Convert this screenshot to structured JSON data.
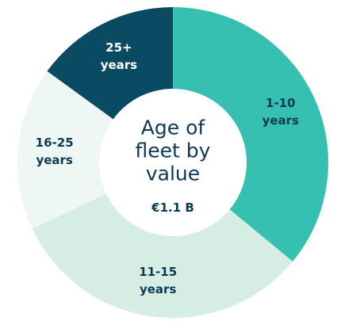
{
  "chart_data": {
    "type": "donut",
    "title": "Age of fleet by value",
    "subtitle": "€1.1 B",
    "categories": [
      "1-10 years",
      "11-15 years",
      "16-25 years",
      "25+ years"
    ],
    "values": [
      36,
      32,
      17,
      15
    ],
    "colors": [
      "#35c0b2",
      "#d6ede3",
      "#eef7f4",
      "#0b4a63"
    ],
    "label_colors": [
      "#0b3a55",
      "#0b3a55",
      "#0b3a55",
      "#ffffff"
    ]
  }
}
